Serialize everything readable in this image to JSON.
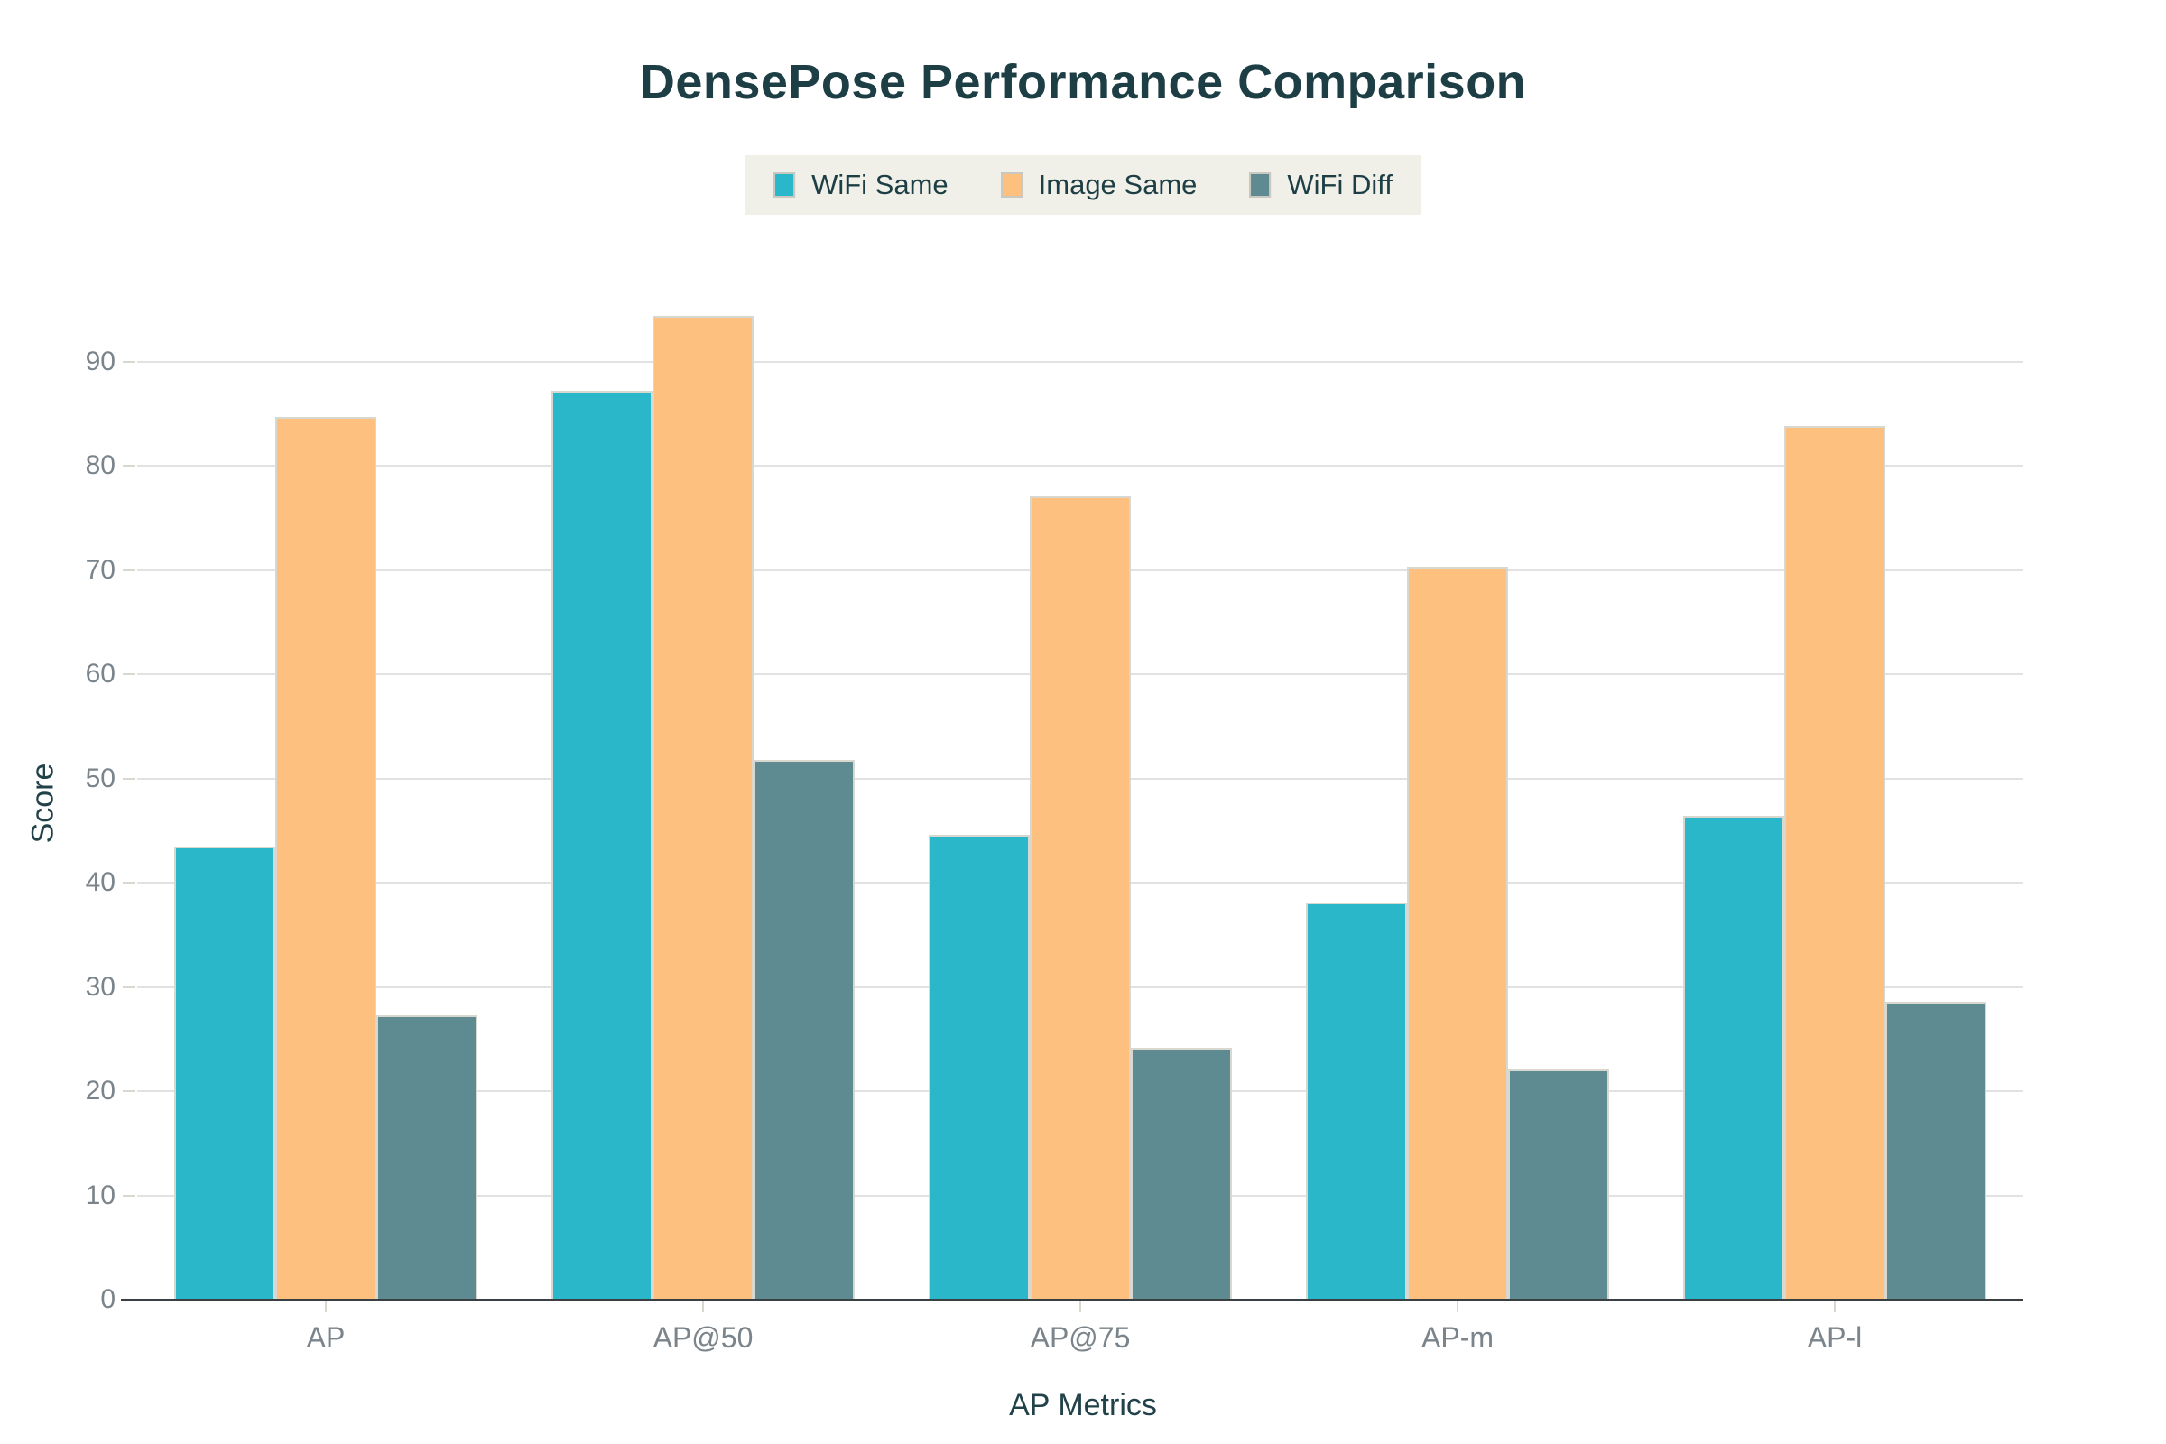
{
  "title": "DensePose Performance Comparison",
  "chart_data": {
    "type": "bar",
    "title": "DensePose Performance Comparison",
    "categories": [
      "AP",
      "AP@50",
      "AP@75",
      "AP-m",
      "AP-l"
    ],
    "series": [
      {
        "name": "WiFi Same",
        "color": "#2AB7CA",
        "values": [
          43.5,
          87.2,
          44.6,
          38.1,
          46.4
        ]
      },
      {
        "name": "Image Same",
        "color": "#FEC07F",
        "values": [
          84.7,
          94.4,
          77.1,
          70.3,
          83.8
        ]
      },
      {
        "name": "WiFi Diff",
        "color": "#5E8A92",
        "values": [
          27.3,
          51.8,
          24.2,
          22.1,
          28.6
        ]
      }
    ],
    "xlabel": "AP Metrics",
    "ylabel": "Score",
    "ylim": [
      0,
      95
    ],
    "yticks": [
      0,
      10,
      20,
      30,
      40,
      50,
      60,
      70,
      80,
      90
    ],
    "grid": true,
    "legend_position": "top-center"
  },
  "palette": {
    "background": "#FFFFFF",
    "title_text": "#1C3E44",
    "axis_title_text": "#22424A",
    "tick_text": "#7A848A",
    "grid": "#E2E2E2",
    "tick_mark": "#D8D8D0",
    "axis_line": "#3A3F42",
    "legend_bg": "#F0F0E9",
    "legend_text": "#1C3E44",
    "bar_border": "#D8D8D0",
    "swatch_border": "#C9C9C1"
  }
}
